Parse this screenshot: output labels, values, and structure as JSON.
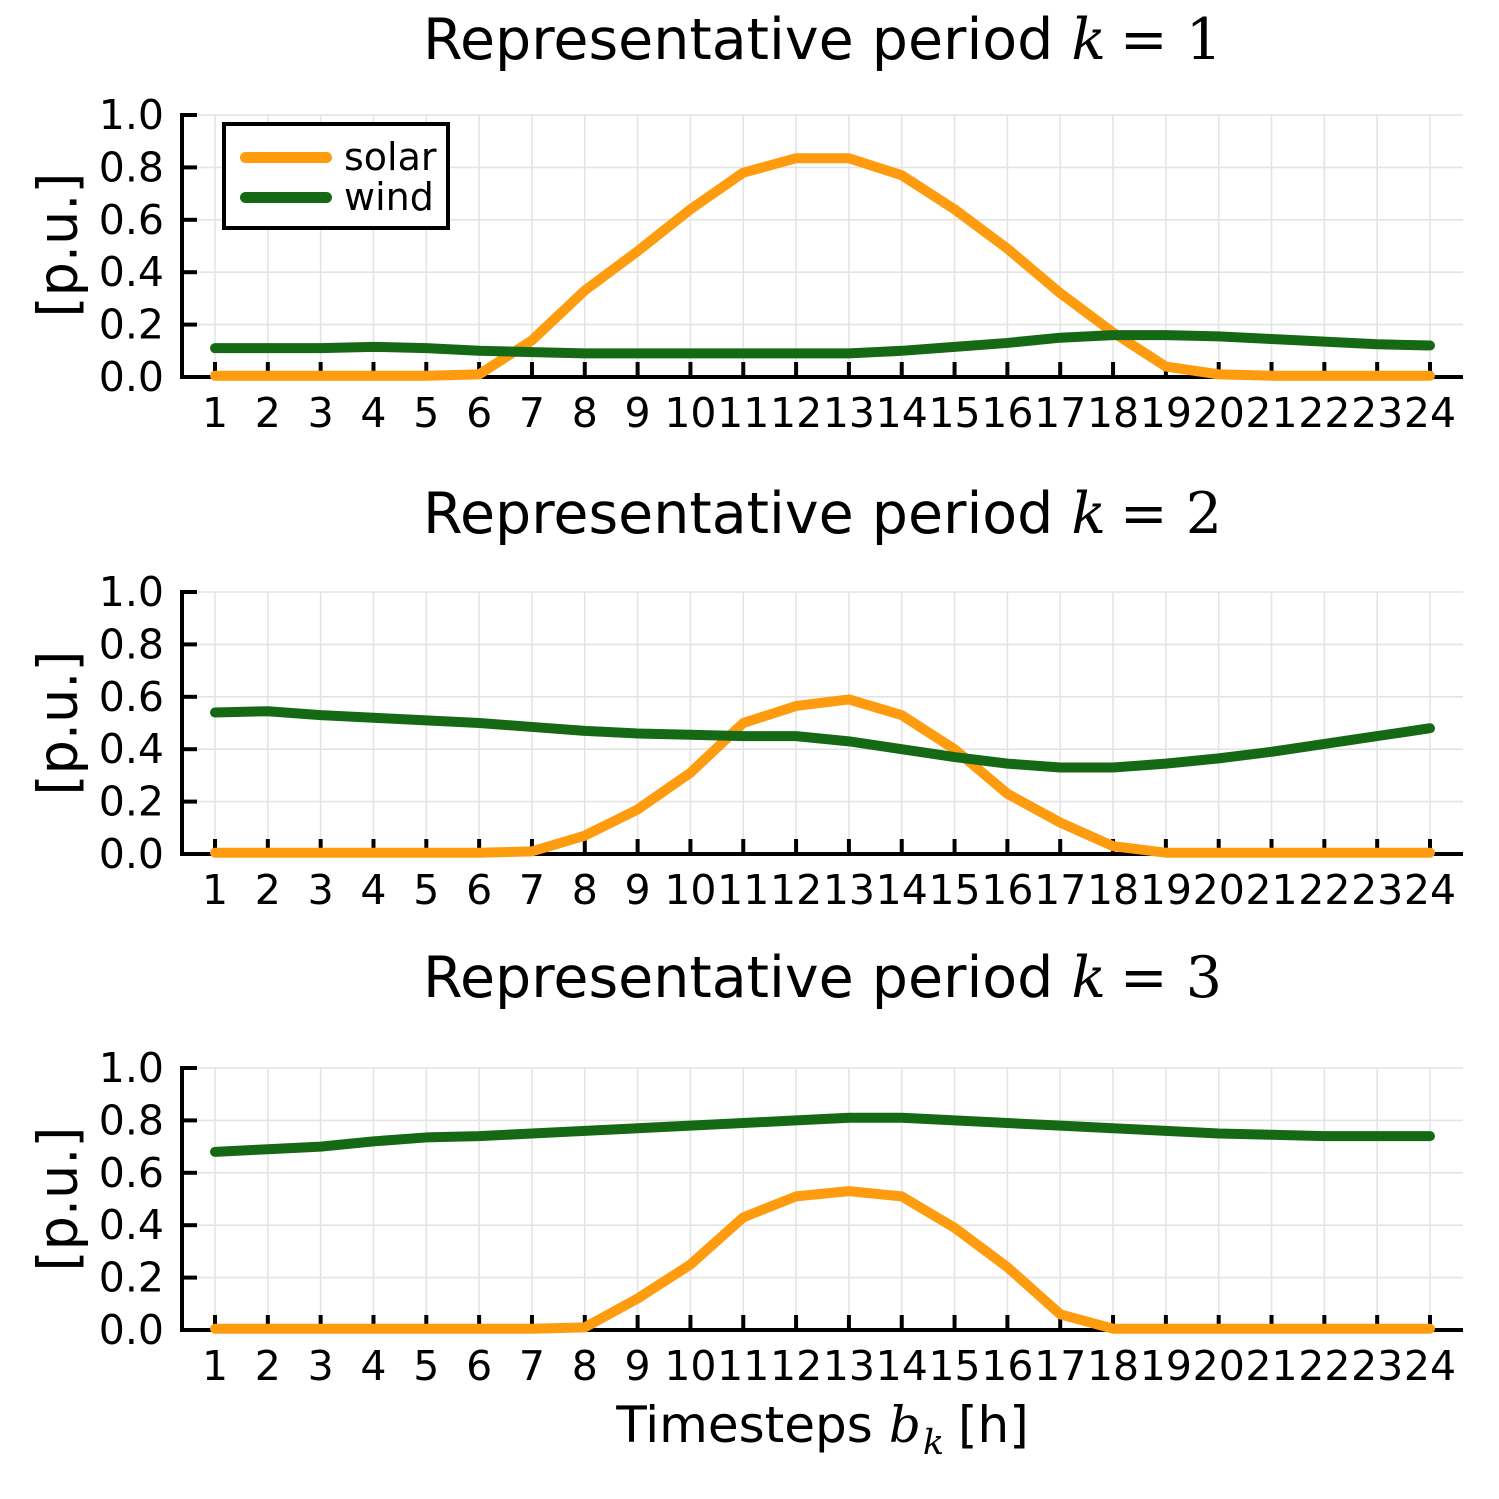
{
  "ylabel": "[p.u.]",
  "xlabel": {
    "text": "Timesteps",
    "math_var": "b",
    "math_sub": "k",
    "unit": "[h]"
  },
  "legend": {
    "entries": [
      {
        "label": "solar",
        "color_key": "solar"
      },
      {
        "label": "wind",
        "color_key": "wind"
      }
    ]
  },
  "colors": {
    "solar": "#FF9B0F",
    "wind": "#156914",
    "grid": "#E4E4E4",
    "axis": "#000000"
  },
  "chart_data": [
    {
      "type": "line",
      "title": {
        "prefix": "Representative period",
        "var": "k",
        "rest": "= 1"
      },
      "ylabel": "[p.u.]",
      "x": [
        1,
        2,
        3,
        4,
        5,
        6,
        7,
        8,
        9,
        10,
        11,
        12,
        13,
        14,
        15,
        16,
        17,
        18,
        19,
        20,
        21,
        22,
        23,
        24
      ],
      "series": [
        {
          "name": "solar",
          "values": [
            0.005,
            0.005,
            0.005,
            0.005,
            0.005,
            0.01,
            0.14,
            0.33,
            0.48,
            0.64,
            0.78,
            0.835,
            0.835,
            0.77,
            0.64,
            0.49,
            0.32,
            0.17,
            0.04,
            0.01,
            0.005,
            0.005,
            0.005,
            0.005
          ]
        },
        {
          "name": "wind",
          "values": [
            0.11,
            0.11,
            0.11,
            0.115,
            0.11,
            0.1,
            0.095,
            0.09,
            0.09,
            0.09,
            0.09,
            0.09,
            0.09,
            0.1,
            0.115,
            0.13,
            0.15,
            0.16,
            0.16,
            0.155,
            0.145,
            0.135,
            0.125,
            0.12
          ]
        }
      ],
      "ylim": [
        0.0,
        1.0
      ],
      "yticks": [
        "0.0",
        "0.2",
        "0.4",
        "0.6",
        "0.8",
        "1.0"
      ],
      "grid": true,
      "legend_position": "top-left"
    },
    {
      "type": "line",
      "title": {
        "prefix": "Representative period",
        "var": "k",
        "rest": "= 2"
      },
      "ylabel": "[p.u.]",
      "x": [
        1,
        2,
        3,
        4,
        5,
        6,
        7,
        8,
        9,
        10,
        11,
        12,
        13,
        14,
        15,
        16,
        17,
        18,
        19,
        20,
        21,
        22,
        23,
        24
      ],
      "series": [
        {
          "name": "solar",
          "values": [
            0.005,
            0.005,
            0.005,
            0.005,
            0.005,
            0.005,
            0.01,
            0.07,
            0.17,
            0.31,
            0.5,
            0.565,
            0.59,
            0.53,
            0.4,
            0.23,
            0.12,
            0.03,
            0.005,
            0.005,
            0.005,
            0.005,
            0.005,
            0.005
          ]
        },
        {
          "name": "wind",
          "values": [
            0.54,
            0.545,
            0.53,
            0.52,
            0.51,
            0.5,
            0.485,
            0.47,
            0.46,
            0.455,
            0.45,
            0.45,
            0.43,
            0.4,
            0.37,
            0.345,
            0.33,
            0.33,
            0.345,
            0.365,
            0.39,
            0.42,
            0.45,
            0.48
          ]
        }
      ],
      "ylim": [
        0.0,
        1.0
      ],
      "yticks": [
        "0.0",
        "0.2",
        "0.4",
        "0.6",
        "0.8",
        "1.0"
      ],
      "grid": true,
      "legend_position": "none"
    },
    {
      "type": "line",
      "title": {
        "prefix": "Representative period",
        "var": "k",
        "rest": "= 3"
      },
      "ylabel": "[p.u.]",
      "x": [
        1,
        2,
        3,
        4,
        5,
        6,
        7,
        8,
        9,
        10,
        11,
        12,
        13,
        14,
        15,
        16,
        17,
        18,
        19,
        20,
        21,
        22,
        23,
        24
      ],
      "series": [
        {
          "name": "solar",
          "values": [
            0.005,
            0.005,
            0.005,
            0.005,
            0.005,
            0.005,
            0.005,
            0.01,
            0.12,
            0.25,
            0.43,
            0.51,
            0.53,
            0.51,
            0.39,
            0.24,
            0.06,
            0.005,
            0.005,
            0.005,
            0.005,
            0.005,
            0.005,
            0.005
          ]
        },
        {
          "name": "wind",
          "values": [
            0.68,
            0.69,
            0.7,
            0.72,
            0.735,
            0.74,
            0.75,
            0.76,
            0.77,
            0.78,
            0.79,
            0.8,
            0.81,
            0.81,
            0.8,
            0.79,
            0.78,
            0.77,
            0.76,
            0.75,
            0.745,
            0.74,
            0.74,
            0.74
          ]
        }
      ],
      "ylim": [
        0.0,
        1.0
      ],
      "yticks": [
        "0.0",
        "0.2",
        "0.4",
        "0.6",
        "0.8",
        "1.0"
      ],
      "grid": true,
      "legend_position": "none"
    }
  ]
}
